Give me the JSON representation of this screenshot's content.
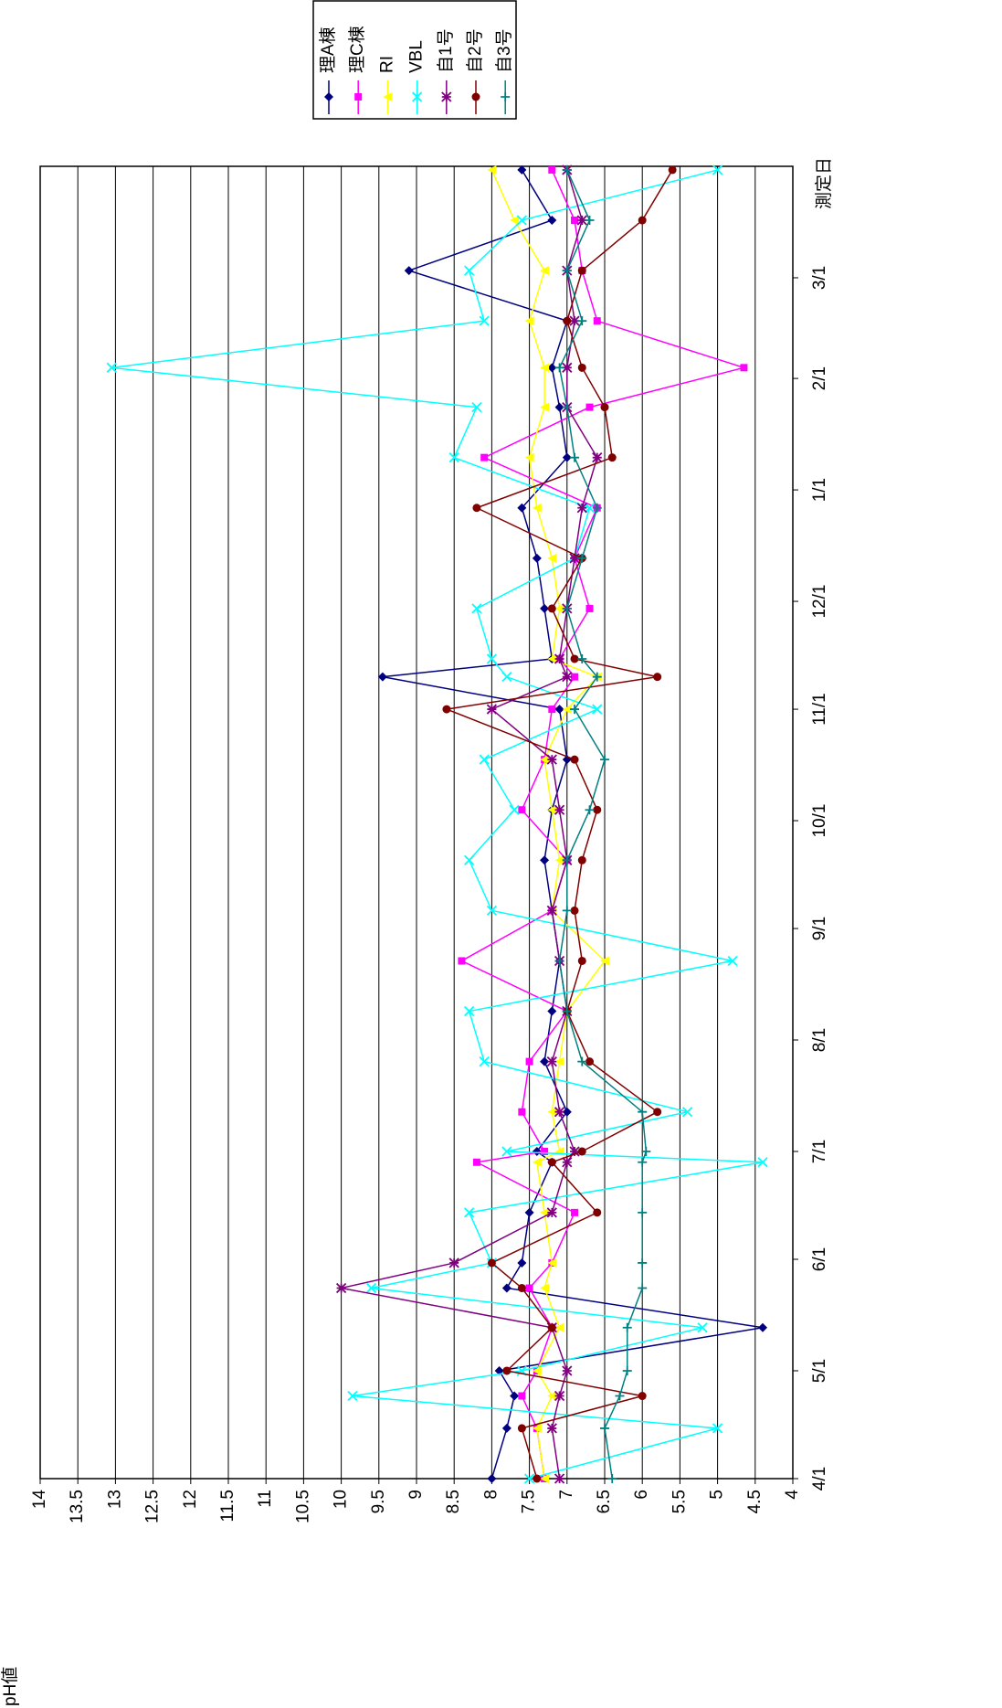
{
  "chart_data": {
    "type": "line",
    "x_label": "測定日",
    "y_label": "pH値",
    "x": [
      0,
      14,
      23,
      30,
      42,
      53,
      60,
      74,
      88,
      91,
      102,
      116,
      130,
      144,
      158,
      172,
      186,
      200,
      214,
      223,
      228,
      242,
      256,
      270,
      284,
      298,
      309,
      322,
      336,
      350,
      364
    ],
    "xlim": [
      0,
      365
    ],
    "xticks": [
      {
        "value": 0,
        "label": "4/1"
      },
      {
        "value": 30,
        "label": "5/1"
      },
      {
        "value": 61,
        "label": "6/1"
      },
      {
        "value": 91,
        "label": "7/1"
      },
      {
        "value": 122,
        "label": "8/1"
      },
      {
        "value": 153,
        "label": "9/1"
      },
      {
        "value": 183,
        "label": "10/1"
      },
      {
        "value": 214,
        "label": "11/1"
      },
      {
        "value": 244,
        "label": "12/1"
      },
      {
        "value": 275,
        "label": "1/1"
      },
      {
        "value": 306,
        "label": "2/1"
      },
      {
        "value": 334,
        "label": "3/1"
      }
    ],
    "ylim": [
      4,
      14
    ],
    "yticks": [
      4,
      4.5,
      5,
      5.5,
      6,
      6.5,
      7,
      7.5,
      8,
      8.5,
      9,
      9.5,
      10,
      10.5,
      11,
      11.5,
      12,
      12.5,
      13,
      13.5,
      14
    ],
    "grid": true,
    "legend": "top",
    "series": [
      {
        "name": "理A棟",
        "color": "#000080",
        "marker": "diamond",
        "values": [
          8.0,
          7.8,
          7.7,
          7.9,
          4.4,
          7.8,
          7.6,
          7.5,
          7.2,
          7.4,
          7.0,
          7.3,
          7.2,
          7.1,
          7.2,
          7.3,
          7.2,
          7.0,
          7.1,
          9.45,
          7.2,
          7.3,
          7.4,
          7.6,
          7.0,
          7.1,
          7.2,
          7.0,
          9.1,
          7.2,
          7.6
        ]
      },
      {
        "name": "理C棟",
        "color": "#ff00ff",
        "marker": "square",
        "values": [
          7.3,
          7.4,
          7.6,
          7.4,
          7.2,
          7.5,
          7.2,
          6.9,
          8.2,
          7.3,
          7.6,
          7.5,
          7.0,
          8.4,
          7.2,
          7.0,
          7.6,
          7.3,
          7.2,
          6.9,
          7.1,
          6.7,
          6.9,
          6.6,
          8.1,
          6.7,
          4.65,
          6.6,
          6.8,
          6.9,
          7.2
        ]
      },
      {
        "name": "RI",
        "color": "#ffff00",
        "marker": "triangle",
        "values": [
          7.3,
          7.4,
          7.2,
          7.4,
          7.1,
          7.3,
          7.2,
          7.3,
          7.4,
          7.1,
          7.2,
          7.1,
          7.0,
          6.5,
          7.2,
          7.1,
          7.2,
          7.3,
          7.0,
          6.6,
          7.2,
          7.1,
          7.2,
          7.4,
          7.5,
          7.3,
          7.3,
          7.5,
          7.3,
          7.7,
          8.0
        ]
      },
      {
        "name": "VBL",
        "color": "#00ffff",
        "marker": "x",
        "values": [
          7.5,
          5.0,
          9.85,
          7.6,
          5.2,
          9.6,
          8.0,
          8.3,
          4.4,
          7.8,
          5.4,
          8.1,
          8.3,
          4.8,
          8.0,
          8.3,
          7.7,
          8.1,
          6.6,
          7.8,
          8.0,
          8.2,
          6.9,
          6.7,
          8.5,
          8.2,
          13.05,
          8.1,
          8.3,
          7.6,
          5.0
        ]
      },
      {
        "name": "自1号",
        "color": "#800080",
        "marker": "star",
        "values": [
          7.1,
          7.2,
          7.1,
          7.0,
          7.2,
          10.0,
          8.5,
          7.2,
          7.0,
          6.9,
          7.1,
          7.2,
          7.0,
          7.1,
          7.2,
          7.0,
          7.1,
          7.2,
          8.0,
          7.0,
          7.1,
          7.0,
          6.9,
          6.8,
          6.6,
          7.0,
          7.0,
          6.9,
          7.0,
          6.8,
          7.0
        ]
      },
      {
        "name": "自2号",
        "color": "#800000",
        "marker": "circle",
        "values": [
          7.4,
          7.6,
          6.0,
          7.8,
          7.2,
          7.6,
          8.0,
          6.6,
          7.2,
          6.8,
          5.8,
          6.7,
          7.0,
          6.8,
          6.9,
          6.8,
          6.6,
          6.9,
          8.6,
          5.8,
          6.9,
          7.2,
          6.8,
          8.2,
          6.4,
          6.5,
          6.8,
          7.0,
          6.8,
          6.0,
          5.6
        ]
      },
      {
        "name": "自3号",
        "color": "#008080",
        "marker": "plus",
        "values": [
          6.4,
          6.5,
          6.3,
          6.2,
          6.2,
          6.0,
          6.0,
          6.0,
          6.0,
          5.95,
          6.0,
          6.8,
          7.0,
          7.1,
          7.0,
          7.0,
          6.7,
          6.5,
          6.9,
          6.6,
          6.8,
          7.0,
          6.8,
          6.6,
          6.9,
          7.0,
          7.1,
          6.8,
          7.0,
          6.7,
          7.0
        ]
      }
    ]
  }
}
